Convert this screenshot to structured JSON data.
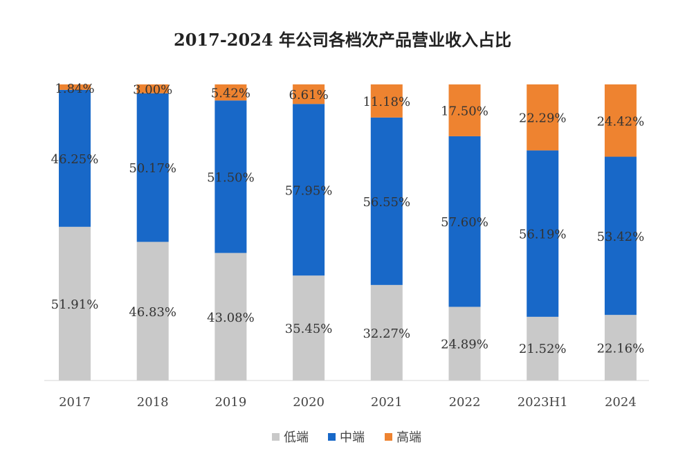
{
  "chart_data": {
    "type": "bar",
    "stacked": true,
    "percent": true,
    "title": "2017-2024 年公司各档次产品营业收入占比",
    "xlabel": "",
    "ylabel": "",
    "ylim": [
      0,
      100
    ],
    "grid": false,
    "legend_position": "bottom",
    "categories": [
      "2017",
      "2018",
      "2019",
      "2020",
      "2021",
      "2022",
      "2023H1",
      "2024"
    ],
    "series": [
      {
        "name": "低端",
        "color": "#c9c9c9",
        "values": [
          51.91,
          46.83,
          43.08,
          35.45,
          32.27,
          24.89,
          21.52,
          22.16
        ],
        "labels": [
          "51.91%",
          "46.83%",
          "43.08%",
          "35.45%",
          "32.27%",
          "24.89%",
          "21.52%",
          "22.16%"
        ]
      },
      {
        "name": "中端",
        "color": "#1868c8",
        "values": [
          46.25,
          50.17,
          51.5,
          57.95,
          56.55,
          57.6,
          56.19,
          53.42
        ],
        "labels": [
          "46.25%",
          "50.17%",
          "51.50%",
          "57.95%",
          "56.55%",
          "57.60%",
          "56.19%",
          "53.42%"
        ]
      },
      {
        "name": "高端",
        "color": "#ee8330",
        "values": [
          1.84,
          3.0,
          5.42,
          6.61,
          11.18,
          17.5,
          22.29,
          24.42
        ],
        "labels": [
          "1.84%",
          "3.00%",
          "5.42%",
          "6.61%",
          "11.18%",
          "17.50%",
          "22.29%",
          "24.42%"
        ]
      }
    ]
  }
}
